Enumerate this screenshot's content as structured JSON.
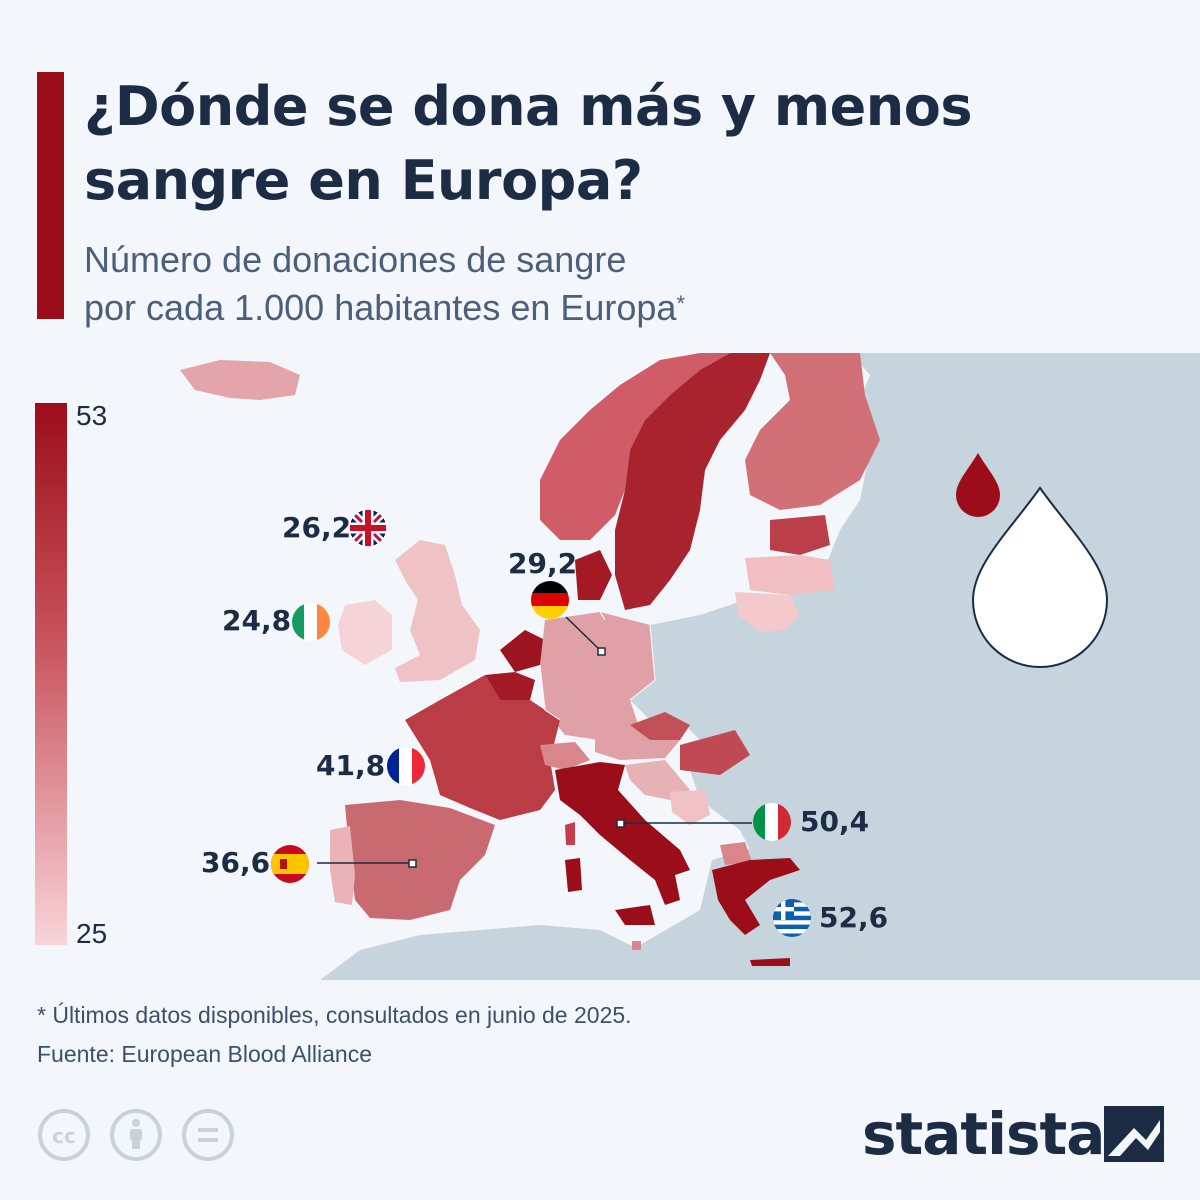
{
  "header": {
    "title": "¿Dónde se dona más y menos sangre en Europa?",
    "subtitle_line1": "Número de donaciones de sangre",
    "subtitle_line2": "por cada 1.000 habitantes en Europa",
    "subtitle_marker": "*"
  },
  "legend": {
    "max": "53",
    "min": "25",
    "color_max": "#9b0d19",
    "color_min": "#f8d4d8"
  },
  "callouts": [
    {
      "country": "United Kingdom",
      "value": "26,2",
      "flag_icon": "uk-flag-icon"
    },
    {
      "country": "Ireland",
      "value": "24,8",
      "flag_icon": "ireland-flag-icon"
    },
    {
      "country": "Germany",
      "value": "29,2",
      "flag_icon": "germany-flag-icon"
    },
    {
      "country": "France",
      "value": "41,8",
      "flag_icon": "france-flag-icon"
    },
    {
      "country": "Spain",
      "value": "36,6",
      "flag_icon": "spain-flag-icon"
    },
    {
      "country": "Italy",
      "value": "50,4",
      "flag_icon": "italy-flag-icon"
    },
    {
      "country": "Greece",
      "value": "52,6",
      "flag_icon": "greece-flag-icon"
    }
  ],
  "footer": {
    "footnote": "* Últimos datos disponibles, consultados en junio de 2025.",
    "source": "Fuente: European Blood Alliance",
    "brand": "statista",
    "license_icons": [
      "cc-icon",
      "attribution-icon",
      "no-derivatives-icon"
    ]
  },
  "colors": {
    "accent": "#9b0d19",
    "background": "#f3f6fa",
    "land_no_data": "#c6d5dd",
    "text": "#1c2c44"
  }
}
